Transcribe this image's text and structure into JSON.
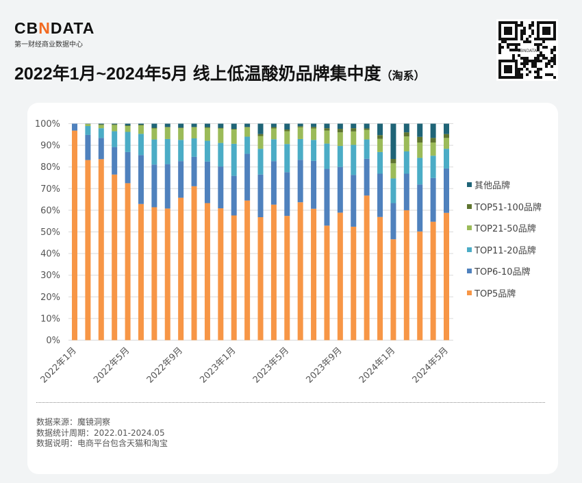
{
  "brand": {
    "logo_text": "CBNDATA",
    "tagline": "第一财经商业数据中心"
  },
  "header": {
    "title": "2022年1月~2024年5月 线上低温酸奶品牌集中度",
    "title_suffix": "（淘系）"
  },
  "qr_code": {
    "center_text": "CBNDATA"
  },
  "chart_data": {
    "type": "bar",
    "stacked": true,
    "percent_stacked": true,
    "x_tick_labels": [
      "2022年1月",
      "2022年5月",
      "2022年9月",
      "2023年1月",
      "2023年5月",
      "2023年9月",
      "2024年1月",
      "2024年5月"
    ],
    "y_tick_labels": [
      "0%",
      "10%",
      "20%",
      "30%",
      "40%",
      "50%",
      "60%",
      "70%",
      "80%",
      "90%",
      "100%"
    ],
    "ylim": [
      0,
      100
    ],
    "grid": true,
    "legend_position": "right",
    "series": [
      {
        "name": "TOP5品牌",
        "color": "#f79646",
        "values": [
          96.8,
          83.2,
          83.6,
          76.5,
          72.5,
          62.9,
          61.4,
          60.8,
          65.8,
          71.1,
          63.3,
          60.9,
          57.6,
          64.5,
          56.8,
          62.6,
          57.4,
          63.7,
          60.7,
          52.9,
          58.9,
          52.4,
          66.8,
          56.9,
          46.6,
          60.0,
          50.2,
          54.7,
          58.8
        ]
      },
      {
        "name": "TOP6-10品牌",
        "color": "#4f81bd",
        "values": [
          3.2,
          11.6,
          9.8,
          12.7,
          14.4,
          22.6,
          19.7,
          20.5,
          16.9,
          13.6,
          19.2,
          19.3,
          18.3,
          21.6,
          19.7,
          20.1,
          20.2,
          19.6,
          22.1,
          26.2,
          21.1,
          23.9,
          17.0,
          20.0,
          16.7,
          16.9,
          21.7,
          20.2,
          20.5
        ]
      },
      {
        "name": "TOP11-20品牌",
        "color": "#4bacc6",
        "values": [
          0,
          4.1,
          4.5,
          7.3,
          9.3,
          9.8,
          11.6,
          11.6,
          9.8,
          8.5,
          9.6,
          10.9,
          14.8,
          7.9,
          11.9,
          10.1,
          13.0,
          9.6,
          9.7,
          11.7,
          9.7,
          13.9,
          8.9,
          10.0,
          11.4,
          10.3,
          12.3,
          10.3,
          9.1
        ]
      },
      {
        "name": "TOP21-50品牌",
        "color": "#9bbb59",
        "values": [
          0,
          0.9,
          1.5,
          2.9,
          2.7,
          3.9,
          5.1,
          5.4,
          5.4,
          5.1,
          6.0,
          6.7,
          6.6,
          4.3,
          5.9,
          5.0,
          5.9,
          5.4,
          5.3,
          6.0,
          6.3,
          6.2,
          4.4,
          6.1,
          7.0,
          6.9,
          7.1,
          6.1,
          5.0
        ]
      },
      {
        "name": "TOP51-100品牌",
        "color": "#5f7530",
        "values": [
          0,
          0.1,
          0.3,
          0.3,
          0.3,
          0.3,
          0.3,
          0.2,
          0.3,
          0.2,
          0.3,
          0.3,
          0.3,
          0.2,
          0.9,
          0.6,
          0.8,
          0.5,
          0.7,
          1.1,
          1.6,
          1.5,
          0.7,
          1.7,
          2.0,
          1.9,
          2.6,
          2.1,
          1.8
        ]
      },
      {
        "name": "其他品牌",
        "color": "#1f6477",
        "values": [
          0,
          0.1,
          0.3,
          0.3,
          0.8,
          0.5,
          1.9,
          1.5,
          1.8,
          1.5,
          1.6,
          1.9,
          2.4,
          1.5,
          4.8,
          1.6,
          2.7,
          1.2,
          1.5,
          2.1,
          2.4,
          2.1,
          2.2,
          5.3,
          16.3,
          4.0,
          6.1,
          6.6,
          4.8
        ]
      }
    ]
  },
  "footer": {
    "source": "数据来源：魔镜洞察",
    "period": "数据统计周期：2022.01-2024.05",
    "note": "数据说明：电商平台包含天猫和淘宝"
  }
}
